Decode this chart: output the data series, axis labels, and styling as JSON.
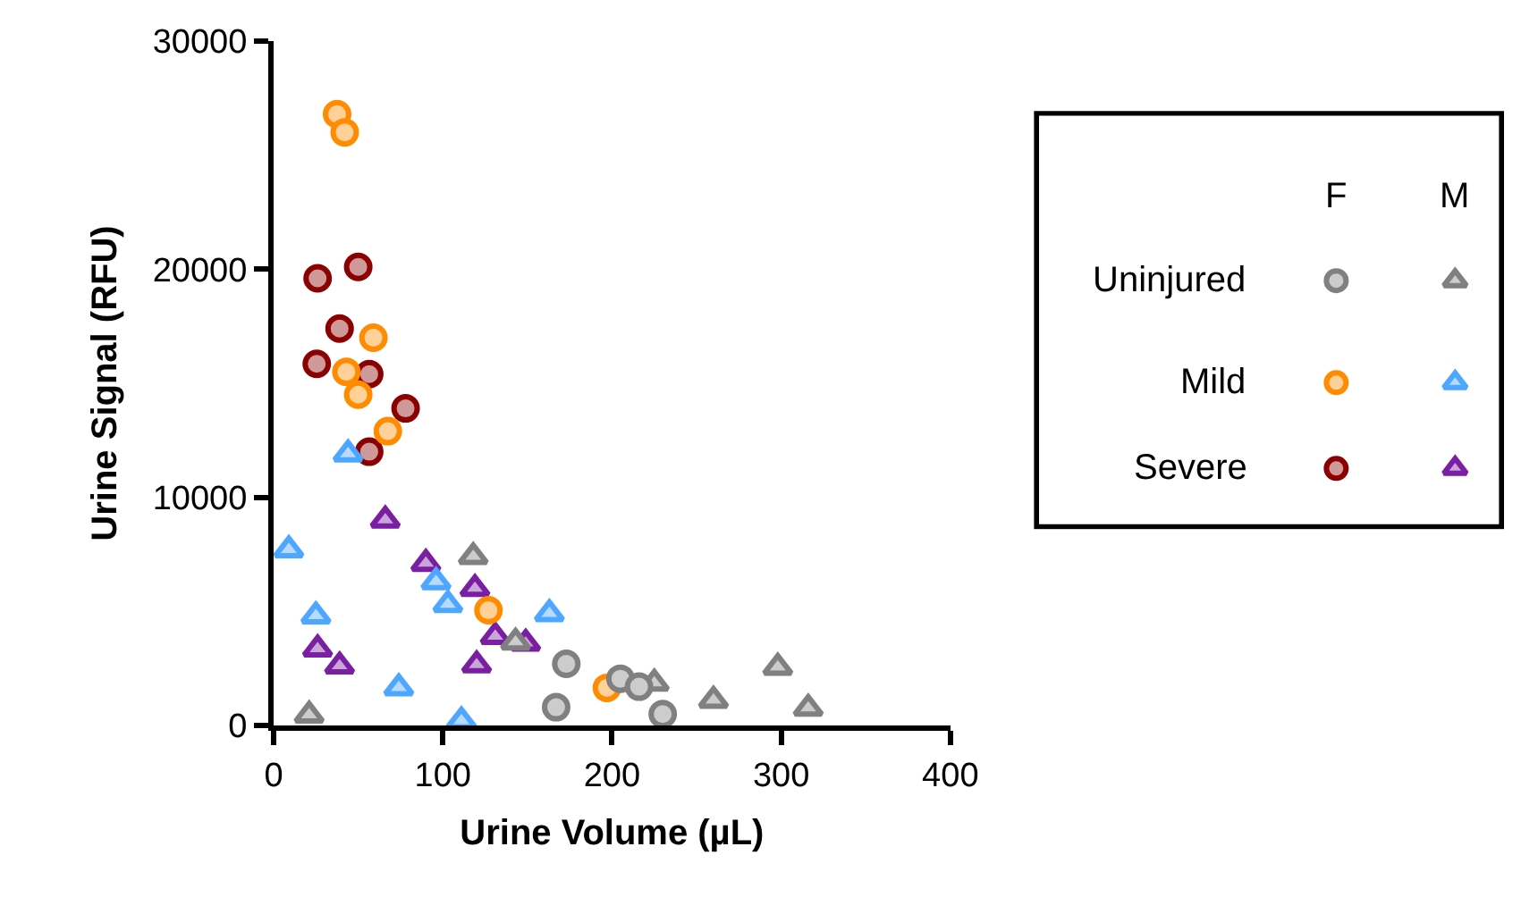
{
  "chart_data": {
    "type": "scatter",
    "xlabel": "Urine Volume (µL)",
    "ylabel": "Urine Signal (RFU)",
    "xlim": [
      0,
      400
    ],
    "xticks": [
      0,
      100,
      200,
      300,
      400
    ],
    "ylim": [
      0,
      30000
    ],
    "yticks": [
      0,
      10000,
      20000,
      30000
    ],
    "legend": "right",
    "annotations": [
      "F",
      "M"
    ],
    "series": [
      {
        "name": "Uninjured",
        "marker": "circle",
        "color": "#808080",
        "x": [
          173,
          167,
          205,
          216,
          230
        ],
        "values": [
          2700,
          800,
          2050,
          1700,
          500
        ]
      },
      {
        "marker": "triangle",
        "color": "#808080",
        "x": [
          21,
          118,
          143,
          225,
          260,
          298,
          316
        ],
        "values": [
          450,
          7400,
          3650,
          1850,
          1100,
          2550,
          750
        ]
      },
      {
        "name": "Mild",
        "marker": "circle",
        "color": "#ff8c00",
        "x": [
          37.5,
          42,
          59,
          43,
          50,
          67.5,
          127,
          197
        ],
        "values": [
          26800,
          26000,
          17000,
          15500,
          14500,
          12900,
          5050,
          1650
        ]
      },
      {
        "marker": "triangle",
        "color": "#4da6ff",
        "x": [
          44,
          9,
          96,
          103,
          163,
          25,
          74,
          111
        ],
        "values": [
          11900,
          7700,
          6300,
          5300,
          4900,
          4800,
          1650,
          200
        ]
      },
      {
        "name": "Severe",
        "marker": "circle",
        "color": "#8b0000",
        "x": [
          26,
          50,
          39,
          25.5,
          56.5,
          78,
          56.5
        ],
        "values": [
          19600,
          20100,
          17400,
          15850,
          15400,
          13900,
          12000
        ]
      },
      {
        "marker": "triangle",
        "color": "#7b1fa2",
        "x": [
          66,
          90,
          119,
          131,
          149,
          26,
          39,
          120
        ],
        "values": [
          9000,
          7100,
          6000,
          3900,
          3600,
          3350,
          2600,
          2650
        ]
      }
    ]
  }
}
